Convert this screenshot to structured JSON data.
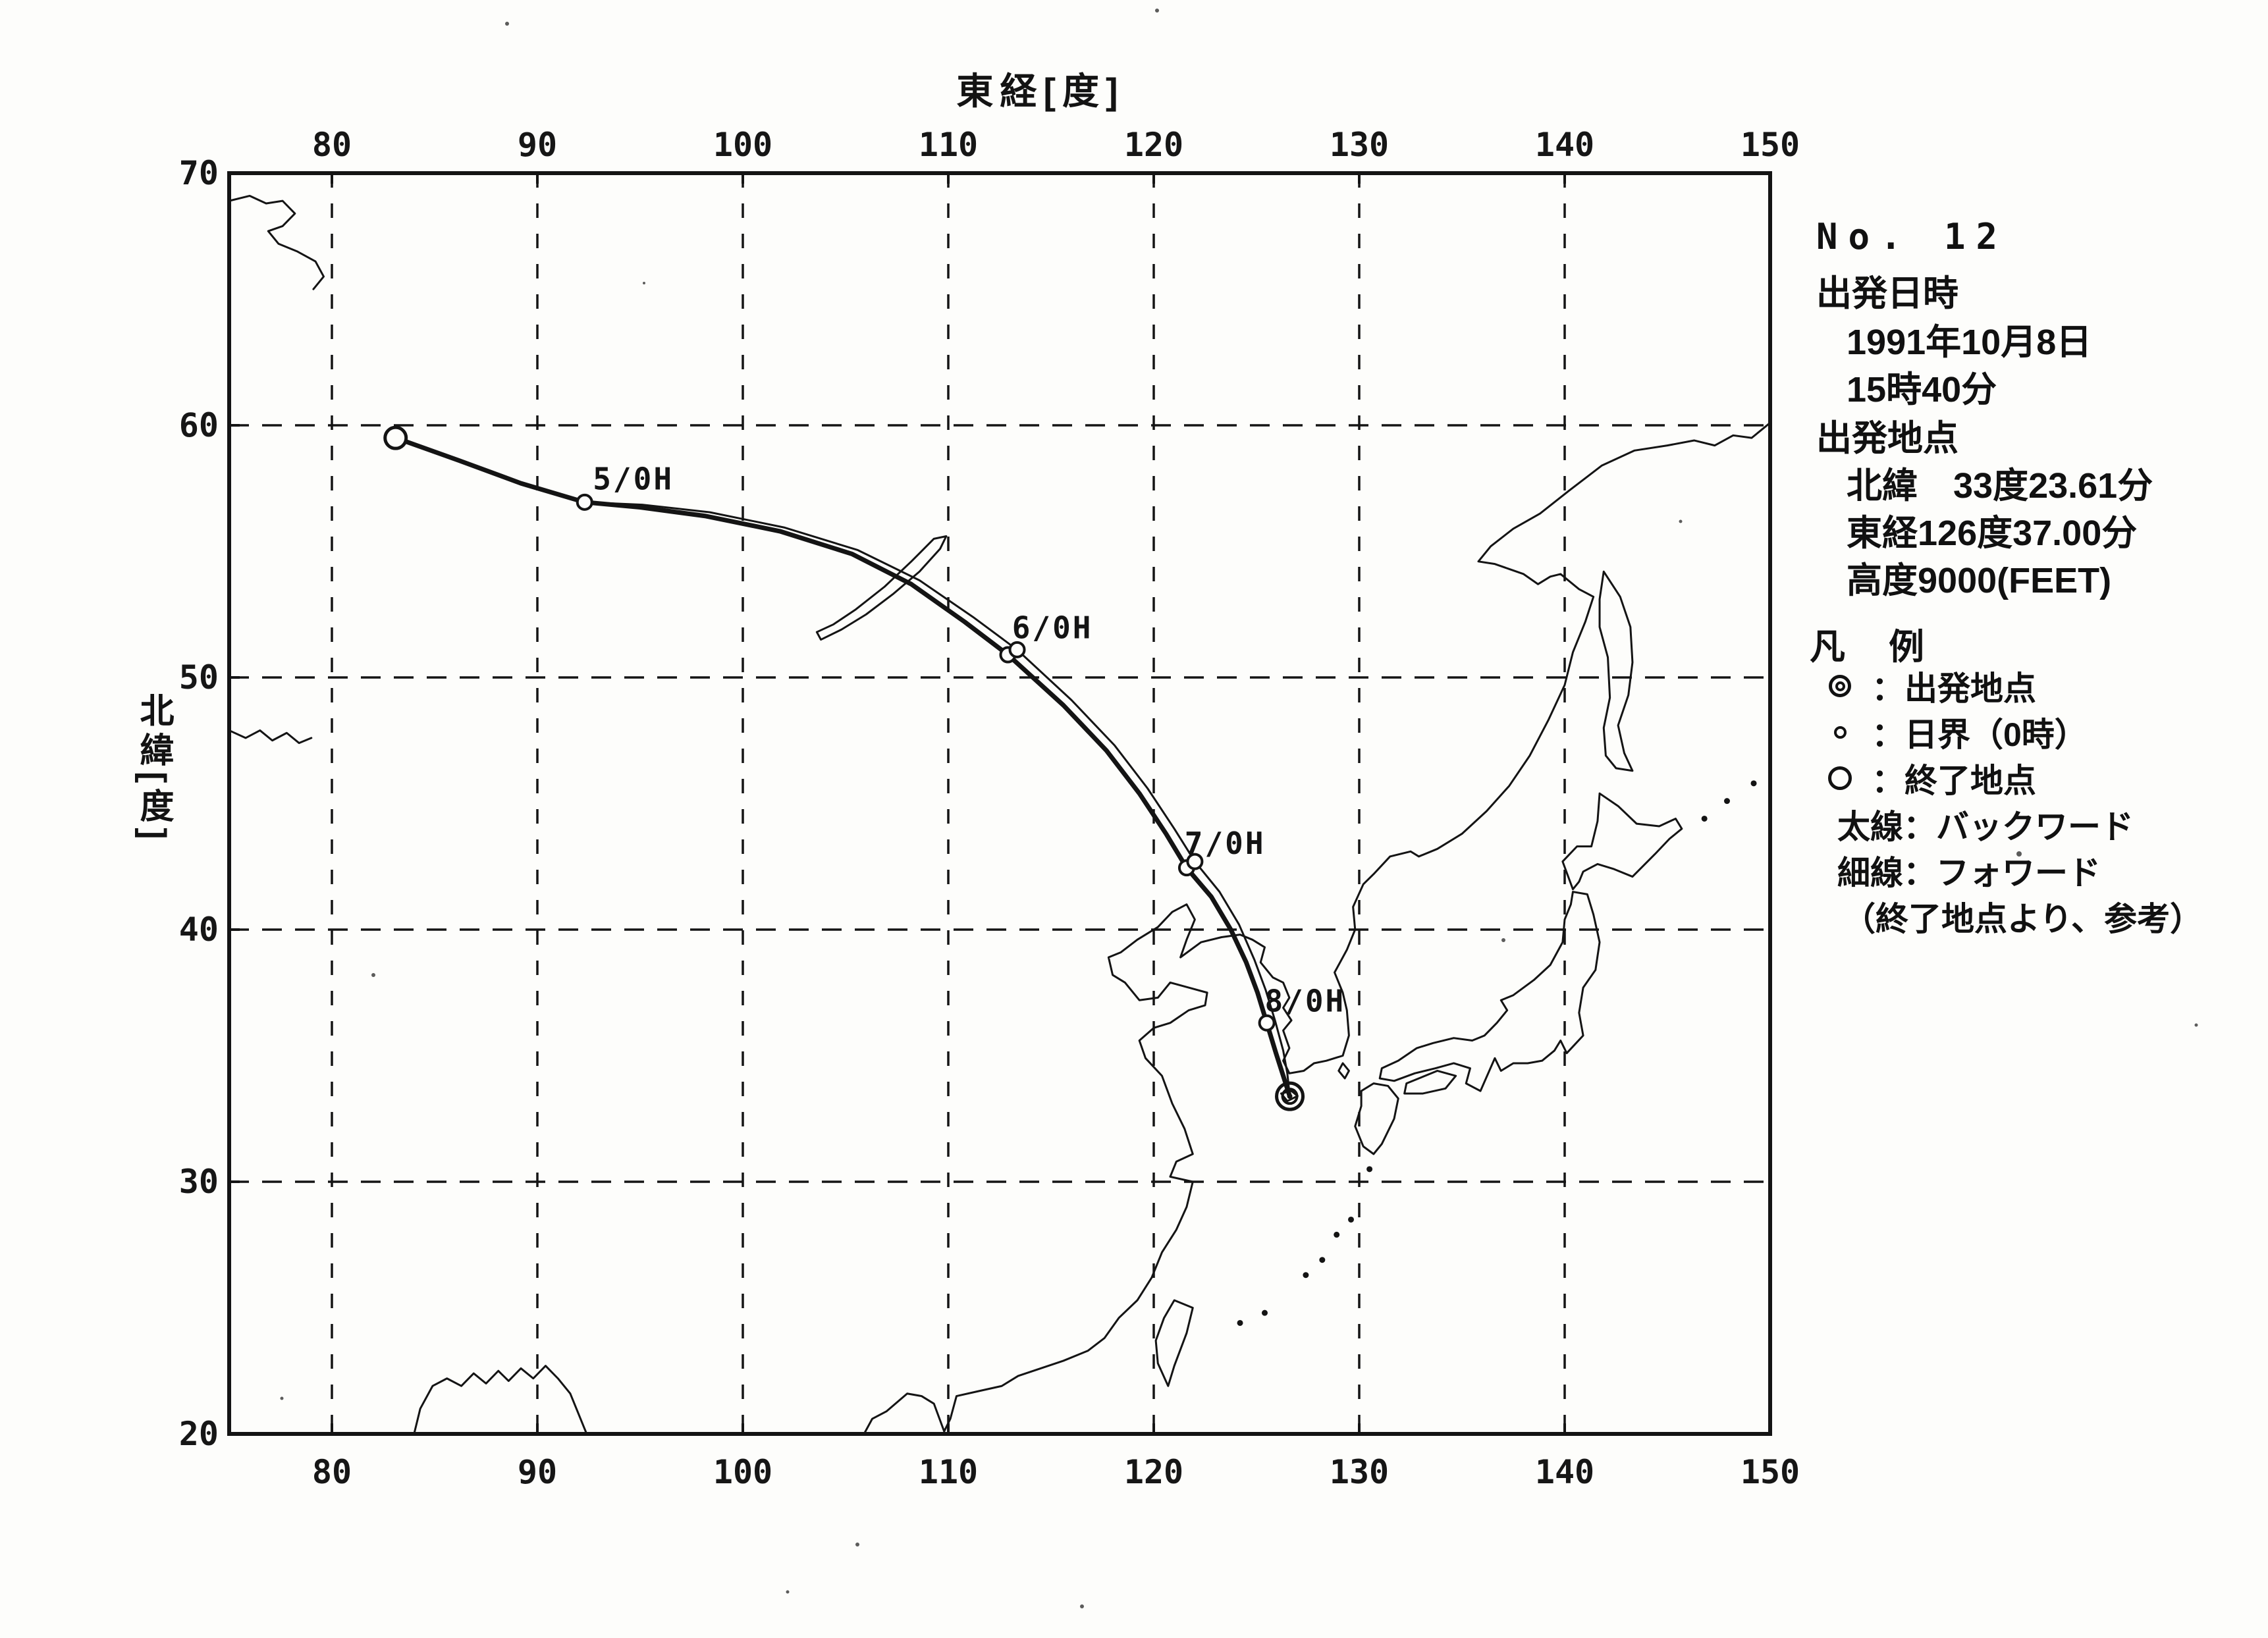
{
  "axes": {
    "x_title": "東経[度]",
    "y_title": "北緯[度]",
    "x_ticks": [
      80,
      90,
      100,
      110,
      120,
      130,
      140,
      150
    ],
    "y_ticks": [
      70,
      60,
      50,
      40,
      30,
      20
    ]
  },
  "info_panel": {
    "number": "No. 12",
    "departure_heading": "出発日時",
    "departure_date": "1991年10月8日",
    "departure_time": "15時40分",
    "location_heading": "出発地点",
    "latitude": "北緯　33度23.61分",
    "longitude": "東経126度37.00分",
    "altitude": "高度9000(FEET)"
  },
  "legend": {
    "heading": "凡　例",
    "departure_label": "：出発地点",
    "day_boundary_label": "：日界（0時）",
    "end_label": "：終了地点",
    "thick_prefix": "太線",
    "thick_label": "：バックワード",
    "thin_prefix": "細線",
    "thin_label": "：フォワード",
    "note": "（終了地点より、参考）"
  },
  "chart_data": {
    "type": "line",
    "title": "",
    "xlabel": "東経[度]",
    "ylabel": "北緯[度]",
    "xlim": [
      75,
      150
    ],
    "ylim": [
      20,
      70
    ],
    "x_ticks": [
      80,
      90,
      100,
      110,
      120,
      130,
      140,
      150
    ],
    "y_ticks": [
      70,
      60,
      50,
      40,
      30,
      20
    ],
    "grid": "dashed",
    "departure_point": {
      "lon": 126.62,
      "lat": 33.39,
      "date": "1991-10-08",
      "time": "15:40",
      "altitude_feet": 9000
    },
    "series": [
      {
        "name": "バックワード（太線）",
        "style": "thick",
        "points": [
          [
            126.62,
            33.39
          ],
          [
            126.3,
            34.2
          ],
          [
            125.95,
            35.1
          ],
          [
            125.5,
            36.3
          ],
          [
            125.05,
            37.5
          ],
          [
            124.5,
            38.7
          ],
          [
            123.75,
            40.0
          ],
          [
            122.8,
            41.3
          ],
          [
            121.6,
            42.45
          ],
          [
            120.6,
            43.8
          ],
          [
            119.3,
            45.4
          ],
          [
            117.7,
            47.1
          ],
          [
            115.6,
            48.9
          ],
          [
            112.9,
            50.9
          ],
          [
            110.8,
            52.2
          ],
          [
            108.2,
            53.7
          ],
          [
            105.3,
            54.9
          ],
          [
            101.8,
            55.8
          ],
          [
            98.2,
            56.4
          ],
          [
            95.0,
            56.75
          ],
          [
            92.3,
            56.95
          ],
          [
            89.2,
            57.7
          ],
          [
            86.2,
            58.6
          ],
          [
            83.1,
            59.5
          ]
        ]
      },
      {
        "name": "フォワード（細線）",
        "style": "thin",
        "points": [
          [
            126.62,
            33.39
          ],
          [
            126.5,
            34.3
          ],
          [
            126.3,
            35.2
          ],
          [
            125.9,
            36.4
          ],
          [
            125.45,
            37.6
          ],
          [
            124.9,
            38.8
          ],
          [
            124.15,
            40.2
          ],
          [
            123.2,
            41.5
          ],
          [
            122.0,
            42.7
          ],
          [
            121.0,
            44.0
          ],
          [
            119.7,
            45.6
          ],
          [
            118.1,
            47.3
          ],
          [
            116.0,
            49.1
          ],
          [
            113.35,
            51.1
          ],
          [
            111.2,
            52.4
          ],
          [
            108.6,
            53.85
          ],
          [
            105.6,
            55.05
          ],
          [
            102.0,
            55.95
          ],
          [
            98.4,
            56.55
          ],
          [
            95.1,
            56.85
          ],
          [
            92.3,
            56.95
          ],
          [
            89.2,
            57.7
          ],
          [
            86.2,
            58.6
          ],
          [
            83.1,
            59.5
          ]
        ]
      }
    ],
    "markers": {
      "departure": {
        "lon": 126.62,
        "lat": 33.39
      },
      "end": {
        "lon": 83.1,
        "lat": 59.5
      },
      "day_boundaries": [
        {
          "label": "5/0H",
          "points": [
            [
              92.3,
              56.95
            ]
          ],
          "label_pos": [
            92.7,
            57.45
          ]
        },
        {
          "label": "6/0H",
          "points": [
            [
              112.9,
              50.9
            ],
            [
              113.35,
              51.1
            ]
          ],
          "label_pos": [
            113.1,
            51.55
          ]
        },
        {
          "label": "7/0H",
          "points": [
            [
              121.6,
              42.45
            ],
            [
              122.0,
              42.7
            ]
          ],
          "label_pos": [
            121.5,
            43.0
          ]
        },
        {
          "label": "8/0H",
          "points": [
            [
              125.5,
              36.3
            ]
          ],
          "label_pos": [
            125.4,
            36.75
          ]
        }
      ]
    },
    "island_dots": [
      [
        124.2,
        24.4
      ],
      [
        125.4,
        24.8
      ],
      [
        127.4,
        26.3
      ],
      [
        128.2,
        26.9
      ],
      [
        128.9,
        27.9
      ],
      [
        129.6,
        28.5
      ],
      [
        130.5,
        30.5
      ],
      [
        146.8,
        44.4
      ],
      [
        147.9,
        45.1
      ],
      [
        149.2,
        45.8
      ]
    ]
  },
  "map": {
    "coastlines": [
      "M 30.9 50 L 31.3 49.4 L 32 49.1 L 33 48.4 L 33.7 48.5 L 34.3 48.8 L 34.8 49.9 L 35.1 49.4 L 35.4 48.5 L 36.5 48.3 L 37.6 48.1 L 38.4 47.7 L 39.5 47.4 L 40.6 47.1 L 41.8 46.7 L 42.6 46.2 L 43.3 45.4 L 44.2 44.7 L 44.9 43.8 L 45.4 42.8 L 46.1 41.9 L 46.6 41 L 46.9 40 L 45.8 39.8 L 46.1 39.2 L 46.9 38.9 L 46.5 37.9 L 45.9 36.9 L 45.4 35.8 L 44.6 35.1 L 44.3 34.4 L 45 33.9 L 45.8 33.7 L 46.7 33.2 L 47.5 33 L 47.6 32.5 L 46.7 32.3 L 45.8 32.1 L 45.2 32.7 L 44.3 32.8 L 43.6 32.1 L 43 31.8 L 42.8 31.1 L 43.4 30.9 L 44.2 30.4 L 45.2 29.9 L 45.9 29.3 L 46.6 29 L 47 29.6 L 46.6 30.4 L 46.3 31.1 L 47.3 30.5 L 48.3 30.3 L 49.2 30.2 L 49.8 30.4 L 50.4 30.7 L 50.2 31.3 L 50.8 31.9 L 51.3 32.1 L 51.6 32.7 L 51.3 33.1 L 51.7 33.6 L 51.3 34 L 51.6 34.7 L 51.3 35.2 L 51.6 35.7 L 52.3 35.6 L 52.8 35.3 L 53.4 35.2 L 54.2 35 L 54.5 34.2 L 54.4 33.2 L 54.2 32.5 L 53.8 31.7 L 54.4 30.8 L 54.8 30 L 54.7 29.1 L 55.2 28.2 L 55.7 27.8 L 56.5 27.1 L 57.5 26.9 L 57.9 27.1 L 58.8 26.8 L 60 26.2 L 61.2 25.3 L 62.3 24.3 L 63.3 23.1 L 64.2 21.7 L 65 20.3 L 65.4 19 L 66 17.8 L 66.4 16.8 L 65.7 16.5 L 64.8 15.9 L 64.3 16 L 63.7 16.3 L 63 15.9 L 62.3 15.7 L 61.6 15.5 L 60.8 15.4 L 61.4 14.8 L 62.5 14.1 L 63.8 13.5 L 65.2 12.6 L 66.8 11.6 L 68.4 11 L 70 10.8 L 71.3 10.6 L 72.3 10.8 L 73.2 10.4 L 74.1 10.5 L 75 9.9",
      "M 9 50 L 9.3 49 L 9.9 48.1 L 10.6 47.8 L 11.3 48.1 L 11.9 47.6 L 12.5 48 L 13.1 47.5 L 13.6 47.9 L 14.2 47.4 L 14.8 47.8 L 15.4 47.3 L 16 47.8 L 16.6 48.4 L 17 49.2 L 17.4 50",
      "M 0 1.1 L 1 0.9 L 1.8 1.2 L 2.6 1.1 L 3.2 1.6 L 2.6 2.1 L 1.9 2.3 L 2.4 2.8 L 3.3 3.1 L 4.2 3.5 L 4.6 4.1 L 4.1 4.6",
      "M 0 22.1 L 0.8 22.4 L 1.5 22.1 L 2.1 22.5 L 2.8 22.2 L 3.4 22.6 L 4 22.4",
      "M 28.8 18.5 L 29.8 18.1 L 31 17.5 L 32.3 16.7 L 33.6 15.8 L 34.6 14.9 L 34.9 14.4 L 34.3 14.5 L 33.2 15.4 L 31.9 16.4 L 30.5 17.3 L 29.4 17.9 L 28.6 18.2 Z",
      "M 66.9 15.8 L 67.7 16.8 L 68.2 18 L 68.3 19.4 L 68.1 20.7 L 67.6 21.9 L 67.9 23 L 68.3 23.7 L 67.5 23.6 L 67 23.1 L 66.9 22 L 67.2 20.8 L 67.1 19.2 L 66.7 18 L 66.7 16.9 Z",
      "M 65.4 28.4 L 64.9 27.3 L 65.6 26.7 L 66.3 26.7 L 66.6 25.7 L 66.7 24.6 L 67.6 25.1 L 68.5 25.8 L 69.6 25.9 L 70.4 25.6 L 70.7 26 L 70.1 26.4 L 69.4 27 L 68.3 27.9 L 67.4 27.6 L 66.6 27.4 L 65.9 27.7 L 65.7 28.1 Z",
      "M 65.4 28.5 L 66.1 28.6 L 66.4 29.4 L 66.7 30.5 L 66.5 31.6 L 65.9 32.3 L 65.7 33.3 L 65.9 34.2 L 65.1 34.9 L 64.8 34.4 L 64.5 34.8 L 63.9 35.2 L 63.2 35.3 L 62.5 35.3 L 61.9 35.6 L 61.6 35.1 L 60.9 36.4 L 60.2 36.1 L 60.4 35.5 L 59.6 35.3 L 58.7 35.5 L 57.7 35.7 L 56.7 36 L 56 35.9 L 56.1 35.5 L 56.9 35.2 L 57.8 34.7 L 58.6 34.5 L 59.6 34.3 L 60.5 34.4 L 61.1 34.2 L 61.7 33.7 L 62.2 33.2 L 61.9 32.8 L 62.5 32.6 L 63.5 32 L 64.3 31.4 L 64.9 30.5 L 65 29.6 L 65.3 29 Z",
      "M 55.1 37 L 54.8 37.8 L 55.2 38.6 L 55.7 38.9 L 56.1 38.5 L 56.7 37.5 L 56.9 36.7 L 56.4 36.2 L 55.7 36.1 L 55.1 36.4 Z",
      "M 57.2 36.5 L 58.1 36.5 L 59.2 36.3 L 59.7 35.8 L 58.8 35.6 L 57.9 35.9 L 57.3 36.1 Z",
      "M 46 44.7 L 46.9 45 L 46.6 46 L 46 47.3 L 45.7 48.1 L 45.2 47.2 L 45.1 46.3 L 45.5 45.4 Z",
      "M 54.2 35.3 L 54.5 35.6 L 54.3 35.9 L 54 35.6 Z",
      "M 51.2 36.5 L 51.7 36.4 L 52 36.6 L 51.5 36.8 Z"
    ]
  }
}
